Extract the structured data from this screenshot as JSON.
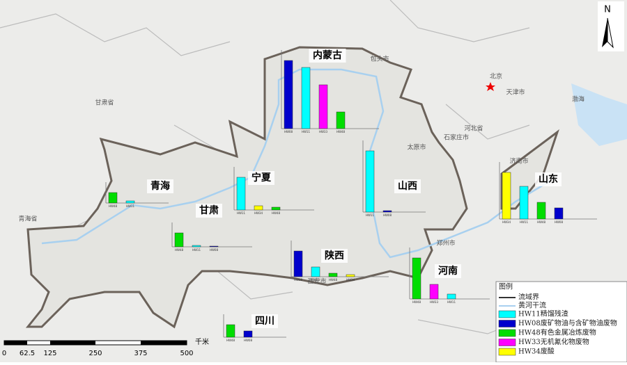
{
  "map": {
    "north": "N",
    "places": [
      "北京",
      "天津市",
      "河北省",
      "石家庄市",
      "太原市",
      "甘肃省",
      "青海省",
      "济南市",
      "郑州市",
      "包头市",
      "渤海",
      "西安市"
    ],
    "scale": {
      "ticks": [
        "0",
        "62.5",
        "125",
        "250",
        "375",
        "500"
      ],
      "unit": "千米"
    },
    "legend": {
      "title": "图例",
      "lines": [
        "流域界",
        "黄河干流"
      ],
      "items": [
        {
          "label": "HW11精馏残渣",
          "color": "#00ffff"
        },
        {
          "label": "HW08废矿物油与含矿物油废物",
          "color": "#0000cc"
        },
        {
          "label": "HW48有色金属冶炼废物",
          "color": "#00dd00"
        },
        {
          "label": "HW33无机氰化物废物",
          "color": "#ff00ff"
        },
        {
          "label": "HW34废酸",
          "color": "#ffff00"
        }
      ]
    },
    "charts": [
      {
        "name": "内蒙古",
        "bars": [
          {
            "code": "HW08",
            "value": 98
          },
          {
            "code": "HW11",
            "value": 88
          },
          {
            "code": "HW33",
            "value": 63
          },
          {
            "code": "HW48",
            "value": 24
          }
        ]
      },
      {
        "name": "宁夏",
        "bars": [
          {
            "code": "HW11",
            "value": 47
          },
          {
            "code": "HW34",
            "value": 6
          },
          {
            "code": "HW48",
            "value": 4
          }
        ]
      },
      {
        "name": "青海",
        "bars": [
          {
            "code": "HW48",
            "value": 15
          },
          {
            "code": "HW11",
            "value": 3
          }
        ]
      },
      {
        "name": "甘肃",
        "bars": [
          {
            "code": "HW48",
            "value": 20
          },
          {
            "code": "HW11",
            "value": 2
          },
          {
            "code": "HW08",
            "value": 1
          }
        ]
      },
      {
        "name": "山西",
        "bars": [
          {
            "code": "HW11",
            "value": 88
          },
          {
            "code": "HW08",
            "value": 2
          }
        ]
      },
      {
        "name": "陕西",
        "bars": [
          {
            "code": "HW08",
            "value": 37
          },
          {
            "code": "HW11",
            "value": 14
          },
          {
            "code": "HW48",
            "value": 5
          },
          {
            "code": "HW34",
            "value": 3
          }
        ]
      },
      {
        "name": "河南",
        "bars": [
          {
            "code": "HW48",
            "value": 59
          },
          {
            "code": "HW33",
            "value": 21
          },
          {
            "code": "HW11",
            "value": 7
          }
        ]
      },
      {
        "name": "山东",
        "bars": [
          {
            "code": "HW34",
            "value": 67
          },
          {
            "code": "HW11",
            "value": 47
          },
          {
            "code": "HW48",
            "value": 24
          },
          {
            "code": "HW08",
            "value": 16
          }
        ]
      },
      {
        "name": "四川",
        "bars": [
          {
            "code": "HW48",
            "value": 18
          },
          {
            "code": "HW08",
            "value": 9
          }
        ]
      }
    ]
  }
}
